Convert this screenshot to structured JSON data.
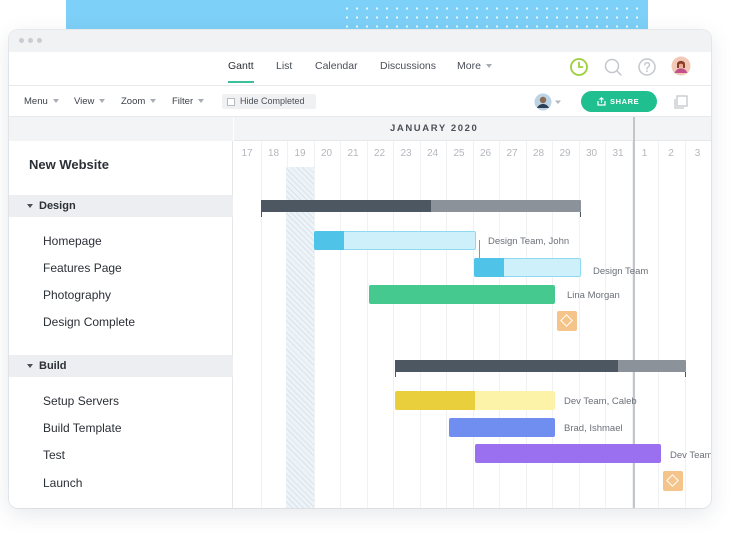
{
  "navbar": {
    "tabs": [
      {
        "label": "Gantt",
        "active": true
      },
      {
        "label": "List"
      },
      {
        "label": "Calendar"
      },
      {
        "label": "Discussions"
      },
      {
        "label": "More"
      }
    ],
    "icons": [
      "clock-icon",
      "search-icon",
      "help-icon",
      "user-avatar"
    ]
  },
  "toolbar": {
    "menu_label": "Menu",
    "view_label": "View",
    "zoom_label": "Zoom",
    "filter_label": "Filter",
    "hide_completed_label": "Hide Completed",
    "share_label": "SHARE"
  },
  "project": {
    "title": "New Website"
  },
  "groups": [
    {
      "name": "Design",
      "tasks": [
        {
          "name": "Homepage",
          "assignee": "Design Team, John"
        },
        {
          "name": "Features Page",
          "assignee": "Design Team"
        },
        {
          "name": "Photography",
          "assignee": "Lina Morgan"
        },
        {
          "name": "Design Complete",
          "milestone": true
        }
      ]
    },
    {
      "name": "Build",
      "tasks": [
        {
          "name": "Setup Servers",
          "assignee": "Dev Team, Caleb"
        },
        {
          "name": "Build Template",
          "assignee": "Brad, Ishmael"
        },
        {
          "name": "Test",
          "assignee": "Dev Team"
        },
        {
          "name": "Launch",
          "milestone": true
        }
      ]
    }
  ],
  "timeline": {
    "month_label": "JANUARY 2020",
    "days": [
      "17",
      "18",
      "19",
      "20",
      "21",
      "22",
      "23",
      "24",
      "25",
      "26",
      "27",
      "28",
      "29",
      "30",
      "31",
      "1",
      "2",
      "3"
    ]
  },
  "colors": {
    "accent": "#1fbf8f",
    "summary_dark": "#4d5761",
    "summary_light": "#8b9299",
    "homepage": "#4fc4e8",
    "homepage_light": "#cdf0fb",
    "photography": "#45c98e",
    "milestone": "#f5c48b",
    "servers": "#e8cf3b",
    "servers_light": "#fcf2a8",
    "template": "#6f8ef0",
    "test": "#9a70f0"
  }
}
